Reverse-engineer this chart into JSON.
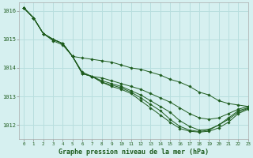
{
  "title": "Graphe pression niveau de la mer (hPa)",
  "background_color": "#d6f0f0",
  "grid_color": "#b8dede",
  "line_color": "#1e5c1e",
  "marker_color": "#1e5c1e",
  "xlim": [
    -0.5,
    23
  ],
  "ylim": [
    1011.5,
    1016.3
  ],
  "yticks": [
    1012,
    1013,
    1014,
    1015,
    1016
  ],
  "xticks": [
    0,
    1,
    2,
    3,
    4,
    5,
    6,
    7,
    8,
    9,
    10,
    11,
    12,
    13,
    14,
    15,
    16,
    17,
    18,
    19,
    20,
    21,
    22,
    23
  ],
  "series": [
    [
      1016.1,
      1015.75,
      1015.2,
      1015.0,
      1014.85,
      1014.4,
      1014.35,
      1014.3,
      1014.25,
      1014.2,
      1014.1,
      1014.0,
      1013.95,
      1013.85,
      1013.75,
      1013.6,
      1013.5,
      1013.35,
      1013.15,
      1013.05,
      1012.85,
      1012.75,
      1012.7,
      1012.65
    ],
    [
      1016.1,
      1015.75,
      1015.2,
      1015.0,
      1014.85,
      1014.4,
      1013.8,
      1013.7,
      1013.65,
      1013.55,
      1013.45,
      1013.35,
      1013.25,
      1013.1,
      1012.95,
      1012.8,
      1012.6,
      1012.4,
      1012.25,
      1012.2,
      1012.25,
      1012.4,
      1012.55,
      1012.65
    ],
    [
      1016.1,
      1015.75,
      1015.2,
      1015.0,
      1014.85,
      1014.4,
      1013.8,
      1013.7,
      1013.55,
      1013.45,
      1013.35,
      1013.2,
      1013.05,
      1012.85,
      1012.65,
      1012.45,
      1012.15,
      1011.95,
      1011.82,
      1011.85,
      1012.0,
      1012.25,
      1012.5,
      1012.6
    ],
    [
      1016.1,
      1015.75,
      1015.2,
      1015.0,
      1014.85,
      1014.4,
      1013.8,
      1013.7,
      1013.5,
      1013.4,
      1013.3,
      1013.15,
      1012.95,
      1012.72,
      1012.5,
      1012.2,
      1011.95,
      1011.82,
      1011.77,
      1011.82,
      1012.0,
      1012.2,
      1012.45,
      1012.58
    ],
    [
      1016.1,
      1015.75,
      1015.2,
      1014.95,
      1014.8,
      1014.4,
      1013.85,
      1013.7,
      1013.5,
      1013.35,
      1013.25,
      1013.1,
      1012.85,
      1012.6,
      1012.35,
      1012.1,
      1011.88,
      1011.78,
      1011.75,
      1011.78,
      1011.9,
      1012.1,
      1012.4,
      1012.55
    ]
  ]
}
